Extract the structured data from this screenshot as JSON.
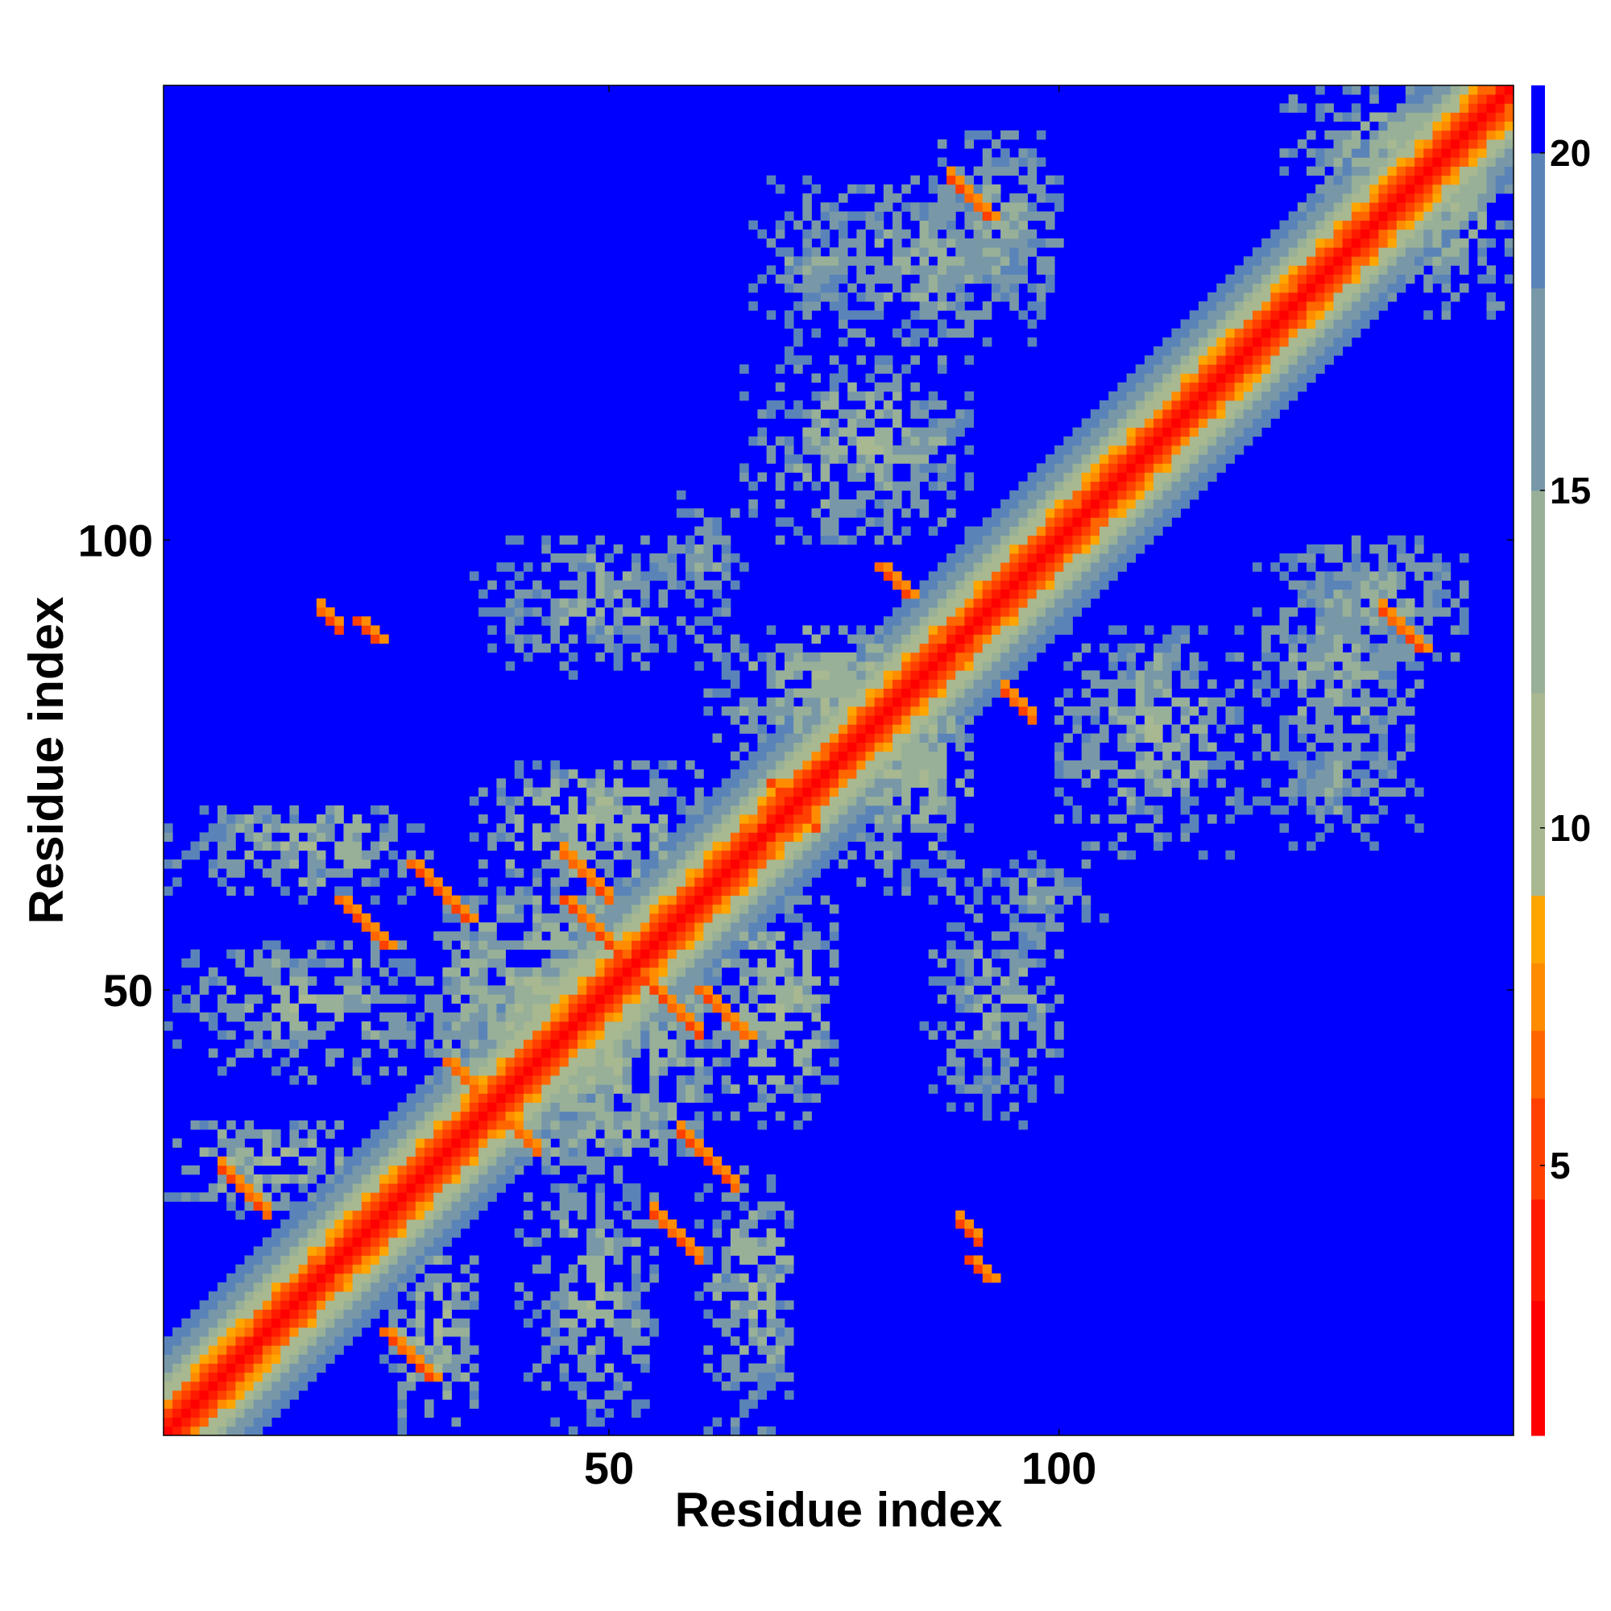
{
  "chart_data": {
    "type": "heatmap",
    "title": "",
    "xlabel": "Residue index",
    "ylabel": "Residue index",
    "n_residues": 150,
    "xlim": [
      0.5,
      150.5
    ],
    "ylim": [
      0.5,
      150.5
    ],
    "x_ticks": [
      50,
      100
    ],
    "y_ticks": [
      50,
      100
    ],
    "colorbar": {
      "min": 1,
      "max": 21,
      "ticks": [
        5,
        10,
        15,
        20
      ],
      "clip_color": "#0000ff",
      "stops": [
        {
          "value": 1,
          "color": "#ff0000"
        },
        {
          "value": 3,
          "color": "#ff1a00"
        },
        {
          "value": 4.5,
          "color": "#ff4000"
        },
        {
          "value": 6,
          "color": "#ff6600"
        },
        {
          "value": 7,
          "color": "#ff8c00"
        },
        {
          "value": 8,
          "color": "#ffa500"
        },
        {
          "value": 9,
          "color": "#a8b890"
        },
        {
          "value": 12,
          "color": "#98b098"
        },
        {
          "value": 15,
          "color": "#7898a8"
        },
        {
          "value": 18,
          "color": "#5a84b8"
        },
        {
          "value": 20,
          "color": "#4a78c0"
        },
        {
          "value": 20.01,
          "color": "#0000ff"
        }
      ]
    },
    "matrix_description": "symmetric distance map (Angstrom), values clipped at 20",
    "diagonal_band": [
      {
        "offset": 0,
        "value": 1
      },
      {
        "offset": 1,
        "value": 3.8
      },
      {
        "offset": 2,
        "value": 5.5
      },
      {
        "offset": 3,
        "value": 7
      },
      {
        "offset": 4,
        "value": 9
      },
      {
        "offset": 5,
        "value": 11
      },
      {
        "offset": 6,
        "value": 13
      },
      {
        "offset": 8,
        "value": 16
      },
      {
        "offset": 10,
        "value": 19
      }
    ],
    "contact_regions": [
      {
        "i": [
          25,
          35
        ],
        "j": [
          1,
          20
        ],
        "center_value": 12
      },
      {
        "i": [
          40,
          55
        ],
        "j": [
          1,
          30
        ],
        "center_value": 13
      },
      {
        "i": [
          30,
          60
        ],
        "j": [
          30,
          60
        ],
        "center_value": 11
      },
      {
        "i": [
          60,
          75
        ],
        "j": [
          35,
          60
        ],
        "center_value": 12
      },
      {
        "i": [
          60,
          70
        ],
        "j": [
          1,
          30
        ],
        "center_value": 13
      },
      {
        "i": [
          85,
          100
        ],
        "j": [
          35,
          60
        ],
        "center_value": 14
      },
      {
        "i": [
          75,
          90
        ],
        "j": [
          60,
          90
        ],
        "center_value": 12
      },
      {
        "i": [
          100,
          120
        ],
        "j": [
          65,
          90
        ],
        "center_value": 13
      },
      {
        "i": [
          120,
          140
        ],
        "j": [
          70,
          100
        ],
        "center_value": 14
      },
      {
        "i": [
          85,
          100
        ],
        "j": [
          125,
          145
        ],
        "center_value": 14
      },
      {
        "i": [
          65,
          80
        ],
        "j": [
          120,
          140
        ],
        "center_value": 15
      },
      {
        "i": [
          55,
          65
        ],
        "j": [
          90,
          105
        ],
        "center_value": 15
      },
      {
        "i": [
          135,
          150
        ],
        "j": [
          125,
          150
        ],
        "center_value": 13
      }
    ],
    "strand_pairs": [
      {
        "i_start": 28,
        "j_start": 64,
        "length": 7,
        "direction": "anti",
        "value": 6
      },
      {
        "i_start": 25,
        "j_start": 12,
        "length": 6,
        "direction": "anti",
        "value": 6
      },
      {
        "i_start": 45,
        "j_start": 60,
        "length": 8,
        "direction": "anti",
        "value": 6
      },
      {
        "i_start": 60,
        "j_start": 50,
        "length": 6,
        "direction": "anti",
        "value": 6
      },
      {
        "i_start": 68,
        "j_start": 73,
        "length": 5,
        "direction": "anti",
        "value": 6
      },
      {
        "i_start": 20,
        "j_start": 60,
        "length": 6,
        "direction": "anti",
        "value": 6
      },
      {
        "i_start": 32,
        "j_start": 42,
        "length": 4,
        "direction": "anti",
        "value": 6
      },
      {
        "i_start": 90,
        "j_start": 20,
        "length": 3,
        "direction": "anti",
        "value": 6
      },
      {
        "i_start": 138,
        "j_start": 90,
        "length": 3,
        "direction": "anti",
        "value": 6
      },
      {
        "i_start": 80,
        "j_start": 97,
        "length": 4,
        "direction": "anti",
        "value": 6
      },
      {
        "i_start": 90,
        "j_start": 138,
        "length": 3,
        "direction": "anti",
        "value": 6
      },
      {
        "i_start": 22,
        "j_start": 91,
        "length": 3,
        "direction": "anti",
        "value": 6
      }
    ]
  }
}
